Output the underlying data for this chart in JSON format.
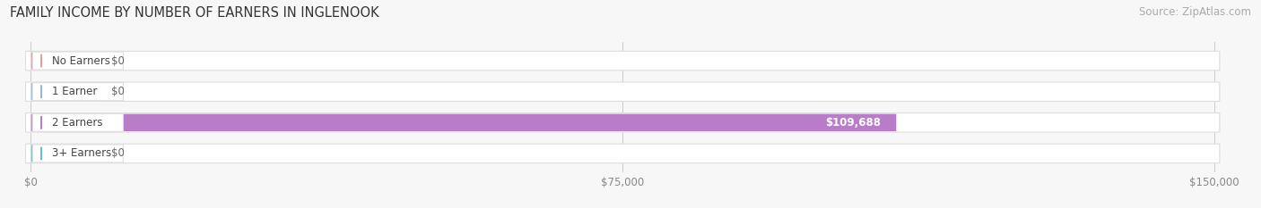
{
  "title": "FAMILY INCOME BY NUMBER OF EARNERS IN INGLENOOK",
  "source": "Source: ZipAtlas.com",
  "categories": [
    "No Earners",
    "1 Earner",
    "2 Earners",
    "3+ Earners"
  ],
  "values": [
    0,
    0,
    109688,
    0
  ],
  "bar_colors": [
    "#f09898",
    "#90b8e0",
    "#b87cc8",
    "#60c4c0"
  ],
  "value_labels": [
    "$0",
    "$0",
    "$109,688",
    "$0"
  ],
  "xlim_max": 150000,
  "xticks": [
    0,
    75000,
    150000
  ],
  "xtick_labels": [
    "$0",
    "$75,000",
    "$150,000"
  ],
  "bg_color": "#f7f7f7",
  "row_bg_color": "#efefef",
  "row_border_color": "#dddddd",
  "title_fontsize": 10.5,
  "source_fontsize": 8.5,
  "tick_fontsize": 8.5
}
